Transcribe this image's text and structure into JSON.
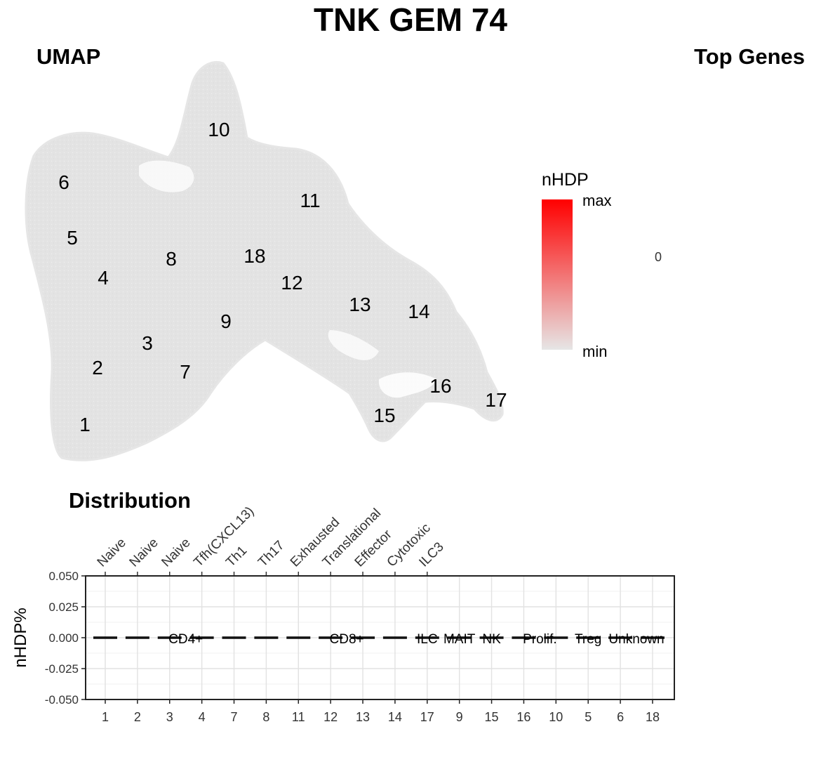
{
  "figure": {
    "title": "TNK GEM 74",
    "umap_title": "UMAP",
    "top_genes_title": "Top Genes",
    "top_genes_value": "0",
    "distribution_title": "Distribution"
  },
  "legend": {
    "title": "nHDP",
    "max_label": "max",
    "min_label": "min",
    "color_max": "#ff0000",
    "color_min": "#e6e6e6"
  },
  "chart_data": [
    {
      "type": "scatter",
      "title": "UMAP",
      "point_color": "#e6e6e6",
      "cluster_labels": [
        "1",
        "2",
        "3",
        "4",
        "5",
        "6",
        "7",
        "8",
        "9",
        "10",
        "11",
        "12",
        "13",
        "14",
        "15",
        "16",
        "17",
        "18"
      ]
    },
    {
      "type": "line",
      "title": "Distribution",
      "xlabel": "",
      "ylabel": "nHDP%",
      "ylim": [
        -0.05,
        0.05
      ],
      "y_ticks": [
        "0.050",
        "0.025",
        "0.000",
        "-0.025",
        "-0.050"
      ],
      "categories": [
        "1",
        "2",
        "3",
        "4",
        "7",
        "8",
        "11",
        "12",
        "13",
        "14",
        "17",
        "9",
        "15",
        "16",
        "10",
        "5",
        "6",
        "18"
      ],
      "values": [
        0,
        0,
        0,
        0,
        0,
        0,
        0,
        0,
        0,
        0,
        0,
        0,
        0,
        0,
        0,
        0,
        0,
        0
      ],
      "top_labels": [
        "Naive",
        "Naive",
        "Naive",
        "Tfh(CXCL13)",
        "Th1",
        "Th17",
        "Exhausted",
        "Translational",
        "Effector",
        "Cytotoxic",
        "ILC3"
      ],
      "groups": [
        {
          "label": "CD4+",
          "start": 0,
          "end": 5
        },
        {
          "label": "CD8+",
          "start": 6,
          "end": 9
        },
        {
          "label": "ILC",
          "start": 10,
          "end": 10
        },
        {
          "label": "MAIT",
          "start": 11,
          "end": 11
        },
        {
          "label": "NK",
          "start": 12,
          "end": 12
        },
        {
          "label": "Prolif.",
          "start": 13,
          "end": 14
        },
        {
          "label": "Treg",
          "start": 15,
          "end": 15
        },
        {
          "label": "Unknown",
          "start": 16,
          "end": 17
        }
      ],
      "grid": true
    }
  ]
}
